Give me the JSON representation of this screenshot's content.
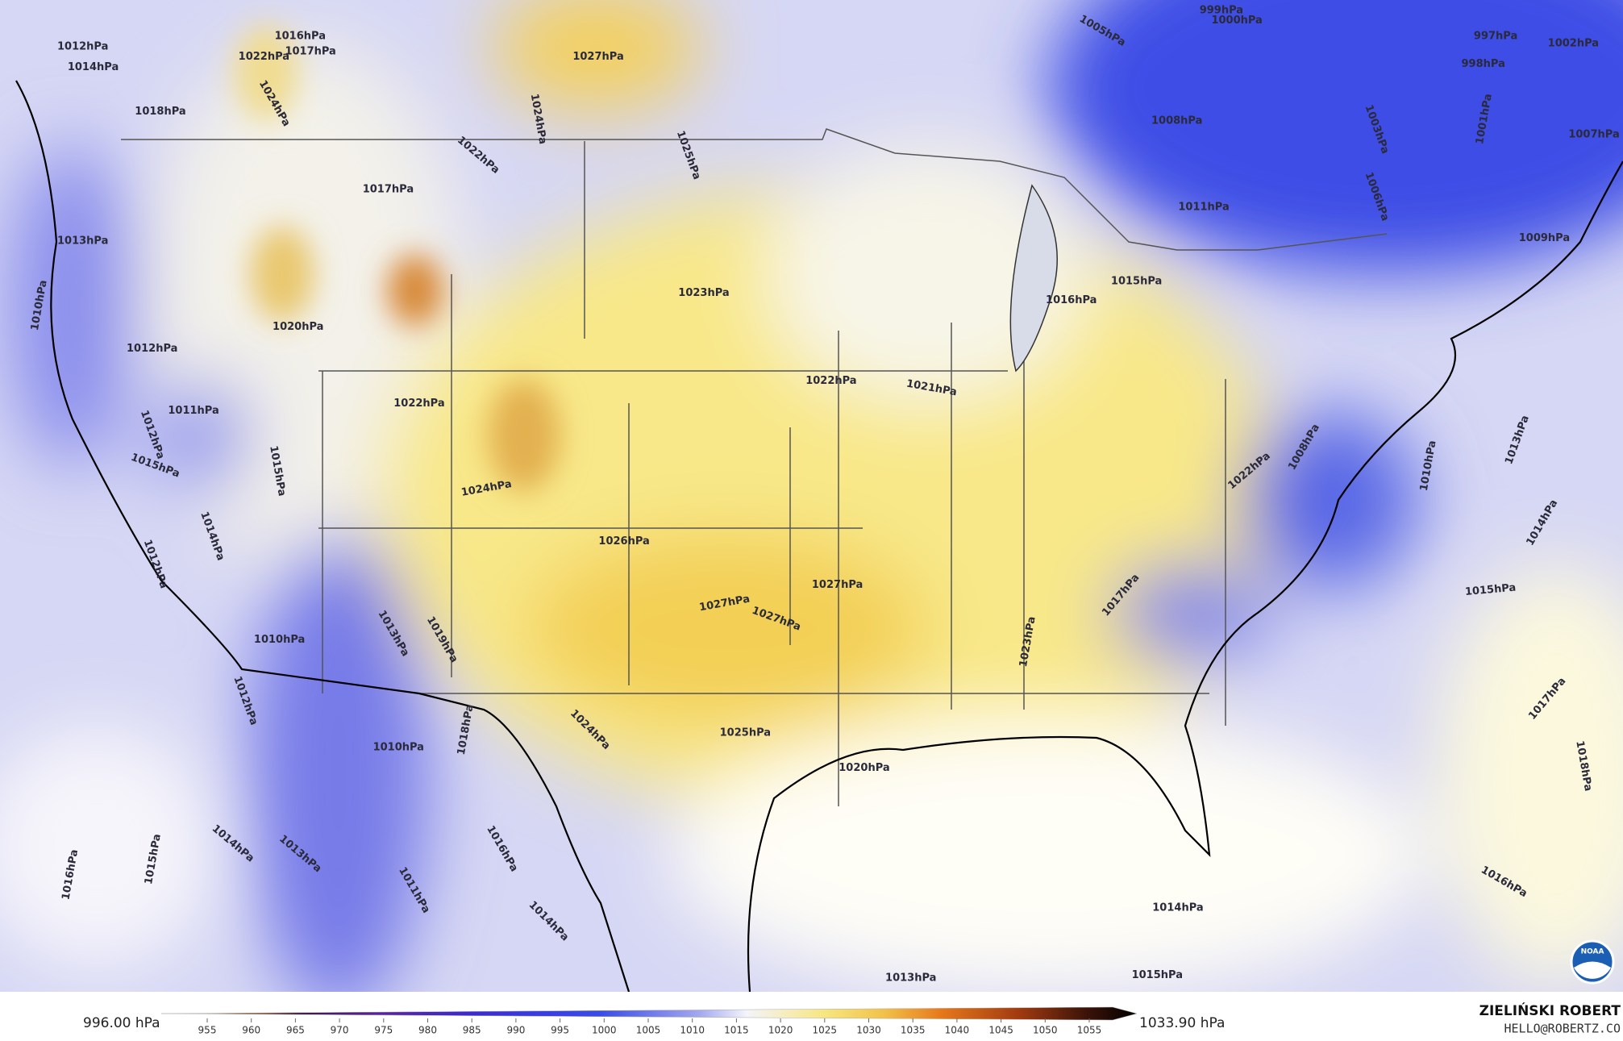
{
  "isobar_labels": [
    "1016hPa",
    "1017hPa",
    "1012hPa",
    "1014hPa",
    "1022hPa",
    "1018hPa",
    "1024hPa",
    "1027hPa",
    "1024hPa",
    "1022hPa",
    "1025hPa",
    "1017hPa",
    "1013hPa",
    "1023hPa",
    "1020hPa",
    "1012hPa",
    "1010hPa",
    "1016hPa",
    "1015hPa",
    "1011hPa",
    "1008hPa",
    "1005hPa",
    "999hPa",
    "1000hPa",
    "997hPa",
    "998hPa",
    "1002hPa",
    "1007hPa",
    "1009hPa",
    "1003hPa",
    "1006hPa",
    "1001hPa",
    "1022hPa",
    "1021hPa",
    "1022hPa",
    "1011hPa",
    "1012hPa",
    "1015hPa",
    "1015hPa",
    "1024hPa",
    "1014hPa",
    "1012hPa",
    "1026hPa",
    "1027hPa",
    "1027hPa",
    "1027hPa",
    "1013hPa",
    "1019hPa",
    "1010hPa",
    "1012hPa",
    "1010hPa",
    "1018hPa",
    "1024hPa",
    "1025hPa",
    "1020hPa",
    "1023hPa",
    "1017hPa",
    "1022hPa",
    "1008hPa",
    "1013hPa",
    "1010hPa",
    "1014hPa",
    "1015hPa",
    "1017hPa",
    "1018hPa",
    "1016hPa",
    "1014hPa",
    "1013hPa",
    "1015hPa",
    "1014hPa",
    "1013hPa",
    "1015hPa",
    "1016hPa",
    "1016hPa",
    "1011hPa",
    "1014hPa"
  ],
  "colorbar": {
    "min_label": "996.00 hPa",
    "max_label": "1033.90 hPa",
    "ticks": [
      955,
      960,
      965,
      970,
      975,
      980,
      985,
      990,
      995,
      1000,
      1005,
      1010,
      1015,
      1020,
      1025,
      1030,
      1035,
      1040,
      1045,
      1050,
      1055
    ]
  },
  "credit": {
    "name": "ZIELIŃSKI ROBERT",
    "email": "HELLO@ROBERTZ.CO",
    "logo_text": "NOAA"
  }
}
